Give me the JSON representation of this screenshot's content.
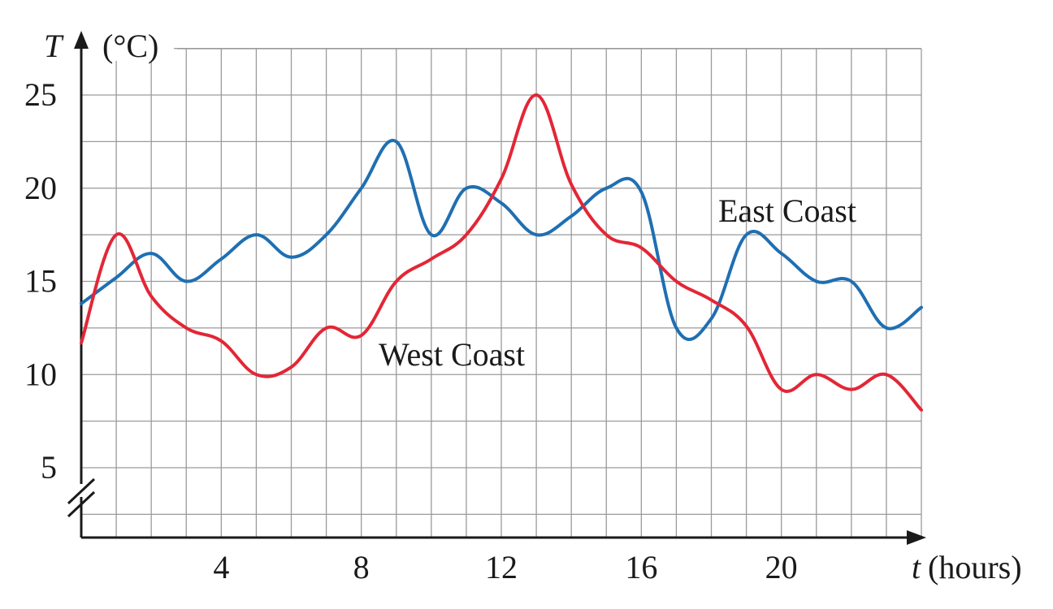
{
  "chart_data": {
    "type": "line",
    "x_axis": {
      "variable": "t",
      "unit": "(hours)",
      "range": [
        0,
        24
      ],
      "ticks": [
        4,
        8,
        12,
        16,
        20
      ]
    },
    "y_axis": {
      "variable": "T",
      "unit": "(°C)",
      "range": [
        2.5,
        27.5
      ],
      "ticks": [
        5,
        10,
        15,
        20,
        25
      ],
      "axis_break": true
    },
    "grid": true,
    "series": [
      {
        "name": "East Coast",
        "color": "#1f6fb2",
        "x": [
          0,
          1,
          2,
          3,
          4,
          5,
          6,
          7,
          8,
          9,
          10,
          11,
          12,
          13,
          14,
          15,
          16,
          17,
          18,
          19,
          20,
          21,
          22,
          23,
          24
        ],
        "y": [
          13.8,
          15.2,
          16.5,
          15.0,
          16.2,
          17.5,
          16.3,
          17.5,
          20.0,
          22.5,
          17.5,
          20.0,
          19.2,
          17.5,
          18.5,
          20.0,
          19.8,
          12.5,
          13.0,
          17.5,
          16.5,
          15.0,
          15.0,
          12.5,
          13.6
        ]
      },
      {
        "name": "West Coast",
        "color": "#e32636",
        "x": [
          0,
          1,
          2,
          3,
          4,
          5,
          6,
          7,
          8,
          9,
          10,
          11,
          12,
          13,
          14,
          15,
          16,
          17,
          18,
          19,
          20,
          21,
          22,
          23,
          24
        ],
        "y": [
          11.7,
          17.5,
          14.2,
          12.5,
          11.8,
          10.0,
          10.4,
          12.5,
          12.1,
          15.0,
          16.2,
          17.5,
          20.5,
          25.0,
          20.2,
          17.5,
          16.8,
          15.0,
          14.0,
          12.6,
          9.2,
          10.0,
          9.2,
          10.0,
          8.1
        ]
      }
    ]
  }
}
